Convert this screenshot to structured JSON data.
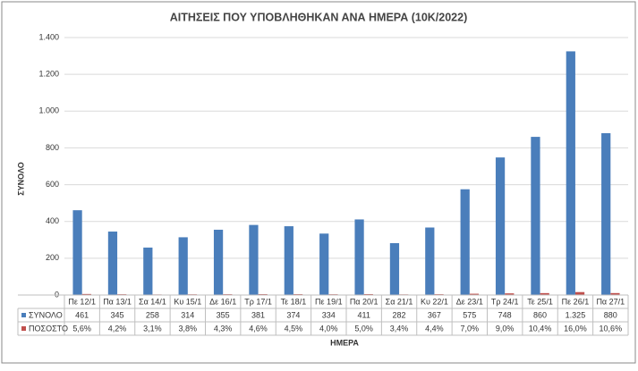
{
  "chart_data": {
    "type": "bar",
    "title": "ΑΙΤΗΣΕΙΣ ΠΟΥ ΥΠΟΒΛΗΘΗΚΑΝ ΑΝΑ ΗΜΕΡΑ (10Κ/2022)",
    "x_label": "ΗΜΕΡΑ",
    "y_label": "ΣΥΝΟΛΟ",
    "categories": [
      "Πε 12/1",
      "Πα 13/1",
      "Σα 14/1",
      "Κυ 15/1",
      "Δε 16/1",
      "Τρ 17/1",
      "Τε 18/1",
      "Πε 19/1",
      "Πα 20/1",
      "Σα 21/1",
      "Κυ 22/1",
      "Δε 23/1",
      "Τρ 24/1",
      "Τε 25/1",
      "Πε 26/1",
      "Πα 27/1"
    ],
    "series": [
      {
        "name": "ΣΥΝΟΛΟ",
        "color": "#4a7ebb",
        "values": [
          461,
          345,
          258,
          314,
          355,
          381,
          374,
          334,
          411,
          282,
          367,
          575,
          748,
          860,
          1325,
          880
        ],
        "value_labels": [
          "461",
          "345",
          "258",
          "314",
          "355",
          "381",
          "374",
          "334",
          "411",
          "282",
          "367",
          "575",
          "748",
          "860",
          "1.325",
          "880"
        ]
      },
      {
        "name": "ΠΟΣΟΣΤΟ",
        "color": "#c0504d",
        "values": [
          5.6,
          4.2,
          3.1,
          3.8,
          4.3,
          4.6,
          4.5,
          4.0,
          5.0,
          3.4,
          4.4,
          7.0,
          9.0,
          10.4,
          16.0,
          10.6
        ],
        "value_labels": [
          "5,6%",
          "4,2%",
          "3,1%",
          "3,8%",
          "4,3%",
          "4,6%",
          "4,5%",
          "4,0%",
          "5,0%",
          "3,4%",
          "4,4%",
          "7,0%",
          "9,0%",
          "10,4%",
          "16,0%",
          "10,6%"
        ]
      }
    ],
    "ylim": [
      0,
      1400
    ],
    "yticks": [
      0,
      200,
      400,
      600,
      800,
      {
        "value": 1000,
        "label": "1.000"
      },
      {
        "value": 1200,
        "label": "1.200"
      },
      {
        "value": 1400,
        "label": "1.400"
      }
    ],
    "grid": true
  }
}
